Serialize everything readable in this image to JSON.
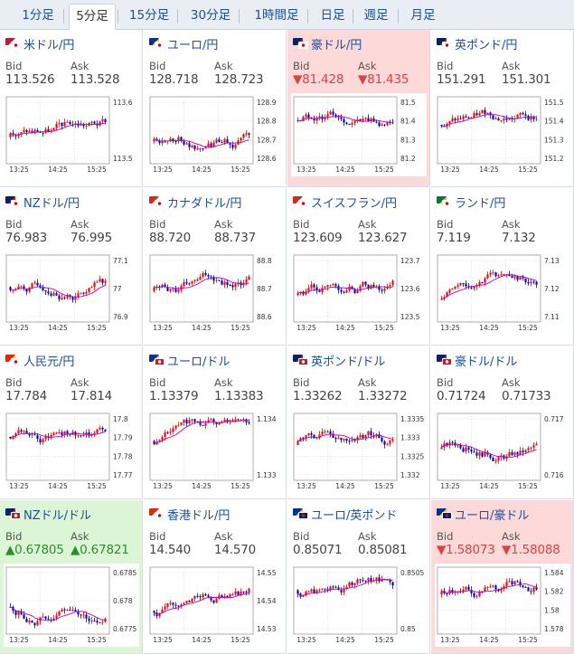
{
  "tabs": [
    {
      "label": "1分足",
      "active": false
    },
    {
      "label": "5分足",
      "active": true
    },
    {
      "label": "15分足",
      "active": false
    },
    {
      "label": "30分足",
      "active": false
    },
    {
      "label": "1時間足",
      "active": false
    },
    {
      "label": "日足",
      "active": false
    },
    {
      "label": "週足",
      "active": false
    },
    {
      "label": "月足",
      "active": false
    }
  ],
  "labels": {
    "bid": "Bid",
    "ask": "Ask"
  },
  "colors": {
    "up_candle": "#ff0000",
    "down_candle": "#0000cc",
    "ma": "#bb00bb",
    "down_bg": "#fdd9d9",
    "up_bg": "#dcf5d6",
    "link": "#1a4fa3"
  },
  "pairs": [
    {
      "name": "米ドル/円",
      "flags": [
        "us",
        "jp"
      ],
      "bid": "113.526",
      "ask": "113.528",
      "trend": "",
      "y_ticks": [
        "113.6",
        "113.5"
      ],
      "x_ticks": [
        "13:25",
        "14:25",
        "15:25"
      ]
    },
    {
      "name": "ユーロ/円",
      "flags": [
        "eu",
        "jp"
      ],
      "bid": "128.718",
      "ask": "128.723",
      "trend": "",
      "y_ticks": [
        "128.9",
        "128.8",
        "128.7",
        "128.6"
      ],
      "x_ticks": [
        "13:25",
        "14:25",
        "15:25"
      ]
    },
    {
      "name": "豪ドル/円",
      "flags": [
        "au",
        "jp"
      ],
      "bid": "▼81.428",
      "ask": "▼81.435",
      "trend": "down",
      "y_ticks": [
        "81.5",
        "81.4",
        "81.3",
        "81.2"
      ],
      "x_ticks": [
        "13:25",
        "14:25",
        "15:25"
      ]
    },
    {
      "name": "英ポンド/円",
      "flags": [
        "gb",
        "jp"
      ],
      "bid": "151.291",
      "ask": "151.301",
      "trend": "",
      "y_ticks": [
        "151.5",
        "151.4",
        "151.3",
        "151.2"
      ],
      "x_ticks": [
        "13:25",
        "14:25",
        "15:25"
      ]
    },
    {
      "name": "NZドル/円",
      "flags": [
        "nz",
        "jp"
      ],
      "bid": "76.983",
      "ask": "76.995",
      "trend": "",
      "y_ticks": [
        "77.1",
        "77",
        "76.9"
      ],
      "x_ticks": [
        "13:25",
        "14:25",
        "15:25"
      ]
    },
    {
      "name": "カナダドル/円",
      "flags": [
        "ca",
        "jp"
      ],
      "bid": "88.720",
      "ask": "88.737",
      "trend": "",
      "y_ticks": [
        "88.8",
        "88.7",
        "88.6"
      ],
      "x_ticks": [
        "13:25",
        "14:25",
        "15:25"
      ]
    },
    {
      "name": "スイスフラン/円",
      "flags": [
        "ch",
        "jp"
      ],
      "bid": "123.609",
      "ask": "123.627",
      "trend": "",
      "y_ticks": [
        "123.7",
        "123.6",
        "123.5"
      ],
      "x_ticks": [
        "13:25",
        "14:25",
        "15:25"
      ]
    },
    {
      "name": "ランド/円",
      "flags": [
        "za",
        "jp"
      ],
      "bid": "7.119",
      "ask": "7.132",
      "trend": "",
      "y_ticks": [
        "7.13",
        "7.12",
        "7.11"
      ],
      "x_ticks": [
        "13:25",
        "14:25",
        "15:25"
      ]
    },
    {
      "name": "人民元/円",
      "flags": [
        "cn",
        "jp"
      ],
      "bid": "17.784",
      "ask": "17.814",
      "trend": "",
      "y_ticks": [
        "17.8",
        "17.79",
        "17.78",
        "17.77"
      ],
      "x_ticks": [
        "13:25",
        "14:25",
        "15:25"
      ]
    },
    {
      "name": "ユーロ/ドル",
      "flags": [
        "eu",
        "us"
      ],
      "bid": "1.13379",
      "ask": "1.13383",
      "trend": "",
      "y_ticks": [
        "1.134",
        "1.133"
      ],
      "x_ticks": [
        "13:25",
        "14:25",
        "15:25"
      ]
    },
    {
      "name": "英ポンド/ドル",
      "flags": [
        "gb",
        "us"
      ],
      "bid": "1.33262",
      "ask": "1.33272",
      "trend": "",
      "y_ticks": [
        "1.3335",
        "1.333",
        "1.3325",
        "1.332"
      ],
      "x_ticks": [
        "13:25",
        "14:25",
        "15:25"
      ]
    },
    {
      "name": "豪ドル/ドル",
      "flags": [
        "au",
        "us"
      ],
      "bid": "0.71724",
      "ask": "0.71733",
      "trend": "",
      "y_ticks": [
        "0.717",
        "0.716"
      ],
      "x_ticks": [
        "13:25",
        "14:25",
        "15:25"
      ]
    },
    {
      "name": "NZドル/ドル",
      "flags": [
        "nz",
        "us"
      ],
      "bid": "▲0.67805",
      "ask": "▲0.67821",
      "trend": "up",
      "y_ticks": [
        "0.6785",
        "0.678",
        "0.6775"
      ],
      "x_ticks": [
        "13:25",
        "14:25",
        "15:25"
      ]
    },
    {
      "name": "香港ドル/円",
      "flags": [
        "hk",
        "jp"
      ],
      "bid": "14.540",
      "ask": "14.570",
      "trend": "",
      "y_ticks": [
        "14.55",
        "14.54",
        "14.53"
      ],
      "x_ticks": [
        "13:25",
        "14:25",
        "15:25"
      ]
    },
    {
      "name": "ユーロ/英ポンド",
      "flags": [
        "eu",
        "gb"
      ],
      "bid": "0.85071",
      "ask": "0.85081",
      "trend": "",
      "y_ticks": [
        "0.8505",
        "0.85"
      ],
      "x_ticks": [
        "13:25",
        "14:25",
        "15:25"
      ]
    },
    {
      "name": "ユーロ/豪ドル",
      "flags": [
        "eu",
        "au"
      ],
      "bid": "▼1.58073",
      "ask": "▼1.58088",
      "trend": "down",
      "y_ticks": [
        "1.584",
        "1.582",
        "1.58",
        "1.578"
      ],
      "x_ticks": [
        "13:25",
        "14:25",
        "15:25"
      ]
    }
  ]
}
